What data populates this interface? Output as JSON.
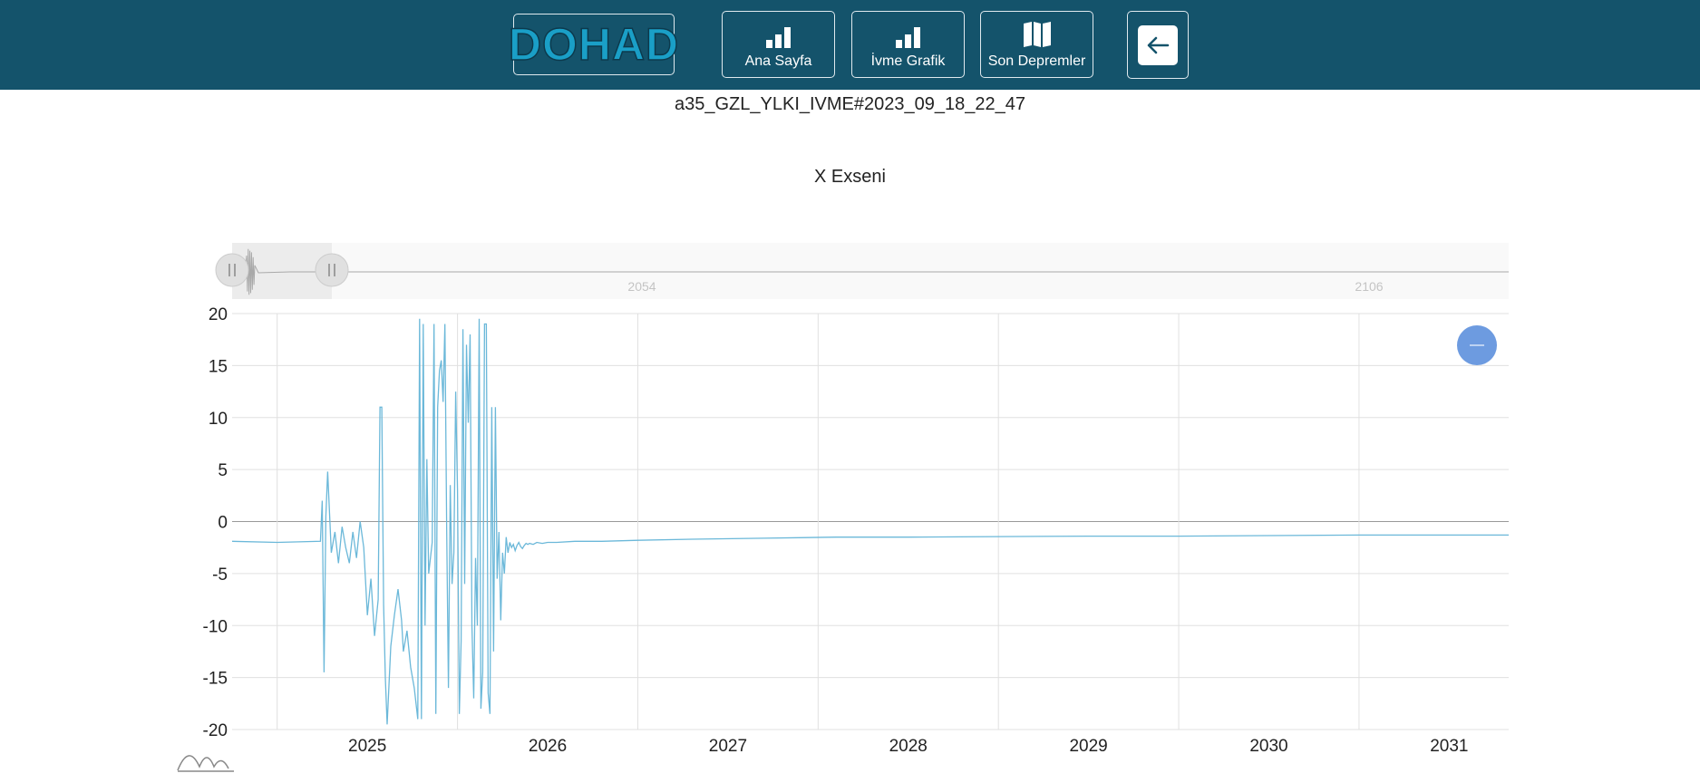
{
  "header": {
    "logo_text": "DOHAD",
    "nav": [
      {
        "label": "Ana Sayfa",
        "icon": "bar-chart-icon"
      },
      {
        "label": "İvme Grafik",
        "icon": "bar-chart-icon"
      },
      {
        "label": "Son Depremler",
        "icon": "map-icon"
      }
    ],
    "back_icon": "arrow-left-icon"
  },
  "record_title": "a35_GZL_YLKI_IVME#2023_09_18_22_47",
  "chart_title": "X Exseni",
  "colors": {
    "header_bg": "#14536b",
    "series": "#6bb8d9",
    "navigator_series": "#a9a9a9",
    "reset_button": "#6d9be0"
  },
  "chart_data": {
    "type": "line",
    "title": "X Exseni",
    "x_ticks": [
      "2025",
      "2026",
      "2027",
      "2028",
      "2029",
      "2030",
      "2031"
    ],
    "y_ticks": [
      20,
      15,
      10,
      5,
      0,
      -5,
      -10,
      -15,
      -20
    ],
    "ylim": [
      -20,
      20
    ],
    "xlim": [
      2024.25,
      2031.33
    ],
    "grid": true,
    "navigator_ticks": [
      "2054",
      "2106"
    ],
    "series": [
      {
        "x": [
          2024.25,
          2024.5,
          2024.74,
          2024.75,
          2024.76,
          2024.77,
          2024.78,
          2024.8,
          2024.82,
          2024.84,
          2024.86,
          2024.88,
          2024.9,
          2024.92,
          2024.94,
          2024.96,
          2024.98,
          2025.0,
          2025.02,
          2025.04,
          2025.06,
          2025.07,
          2025.08,
          2025.09,
          2025.1,
          2025.11,
          2025.13,
          2025.15,
          2025.17,
          2025.19,
          2025.2,
          2025.22,
          2025.24,
          2025.26,
          2025.28,
          2025.29,
          2025.3,
          2025.31,
          2025.32,
          2025.33,
          2025.34,
          2025.36,
          2025.37,
          2025.38,
          2025.39,
          2025.4,
          2025.41,
          2025.42,
          2025.43,
          2025.44,
          2025.45,
          2025.46,
          2025.47,
          2025.48,
          2025.49,
          2025.5,
          2025.51,
          2025.52,
          2025.53,
          2025.54,
          2025.55,
          2025.56,
          2025.57,
          2025.58,
          2025.59,
          2025.6,
          2025.61,
          2025.62,
          2025.63,
          2025.64,
          2025.65,
          2025.66,
          2025.67,
          2025.68,
          2025.69,
          2025.7,
          2025.71,
          2025.72,
          2025.73,
          2025.74,
          2025.75,
          2025.76,
          2025.77,
          2025.78,
          2025.79,
          2025.8,
          2025.81,
          2025.82,
          2025.83,
          2025.84,
          2025.85,
          2025.86,
          2025.87,
          2025.88,
          2025.89,
          2025.9,
          2025.92,
          2025.94,
          2025.97,
          2026.0,
          2026.05,
          2026.15,
          2026.3,
          2026.5,
          2026.8,
          2027.2,
          2027.6,
          2028.0,
          2028.5,
          2029.0,
          2029.5,
          2030.0,
          2030.5,
          2031.0,
          2031.33
        ],
        "y": [
          -1.9,
          -2.0,
          -1.9,
          2,
          -14.5,
          0.5,
          4.8,
          -3.0,
          -1.0,
          -4.0,
          -0.5,
          -2.5,
          -4.0,
          -1.0,
          -3.5,
          0.0,
          -2.5,
          -9.0,
          -5.5,
          -11.0,
          -7.5,
          11.0,
          11.0,
          -8.0,
          -15.0,
          -19.5,
          -12.0,
          -9.0,
          -6.5,
          -9.5,
          -12.5,
          -10.5,
          -14.0,
          -16.0,
          -19.0,
          19.5,
          -19.0,
          19.0,
          -10.0,
          6.0,
          -5.0,
          -2.0,
          19.0,
          -18.5,
          11.0,
          14.5,
          15.5,
          11.5,
          19.0,
          -1.0,
          -16.0,
          3.5,
          -6.0,
          -3.0,
          12.5,
          3.0,
          -18.5,
          -11.5,
          18.5,
          -6.0,
          17.0,
          9.5,
          18.0,
          -10.0,
          -17.0,
          -3.5,
          -10.0,
          19.5,
          -18.0,
          -14.5,
          19.0,
          19.0,
          -16.5,
          -18.5,
          11.0,
          -12.5,
          11.0,
          -5.5,
          -1.0,
          -9.5,
          -3.0,
          -5.0,
          -1.5,
          -3.0,
          -2.0,
          -2.5,
          -2.2,
          -2.8,
          -2.3,
          -2.0,
          -2.4,
          -2.6,
          -2.3,
          -2.1,
          -2.2,
          -2.1,
          -2.2,
          -2.0,
          -2.1,
          -2.0,
          -2.0,
          -1.9,
          -1.9,
          -1.8,
          -1.7,
          -1.6,
          -1.5,
          -1.5,
          -1.45,
          -1.4,
          -1.4,
          -1.35,
          -1.3,
          -1.3,
          -1.3
        ]
      }
    ]
  }
}
